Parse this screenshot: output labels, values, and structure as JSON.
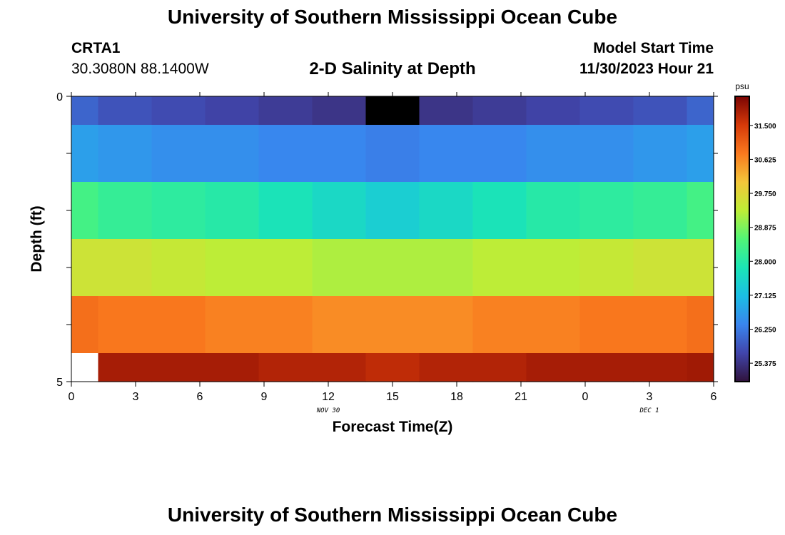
{
  "header": {
    "title": "University of Southern Mississippi Ocean Cube",
    "station": "CRTA1",
    "coords": "30.3080N  88.1400W",
    "plot_title": "2-D Salinity at Depth",
    "start_label": "Model Start Time",
    "start_time": "11/30/2023 Hour 21"
  },
  "footer": {
    "title": "University of Southern Mississippi Ocean Cube"
  },
  "chart_data": {
    "type": "heatmap",
    "title": "2-D Salinity at Depth",
    "xlabel": "Forecast Time(Z)",
    "ylabel": "Depth (ft)",
    "x_ticks": [
      "0",
      "3",
      "6",
      "9",
      "12",
      "15",
      "18",
      "21",
      "0",
      "3",
      "6"
    ],
    "x_range": [
      0,
      30
    ],
    "date_labels": [
      {
        "text": "NOV 30",
        "at_hour": 12
      },
      {
        "text": "DEC 1",
        "at_hour": 27
      }
    ],
    "y_ticks": [
      {
        "label": "0",
        "depth": 0
      },
      {
        "label": "",
        "depth": 1
      },
      {
        "label": "",
        "depth": 2
      },
      {
        "label": "",
        "depth": 3
      },
      {
        "label": "",
        "depth": 4
      },
      {
        "label": "5",
        "depth": 5
      }
    ],
    "y_range": [
      0,
      5
    ],
    "x_centers": [
      0,
      2.5,
      5,
      7.5,
      10,
      12.5,
      15,
      17.5,
      20,
      22.5,
      25,
      27.5,
      30
    ],
    "row_depths": [
      {
        "top": 0,
        "bottom": 0.5
      },
      {
        "top": 0.5,
        "bottom": 1.5
      },
      {
        "top": 1.5,
        "bottom": 2.5
      },
      {
        "top": 2.5,
        "bottom": 3.5
      },
      {
        "top": 3.5,
        "bottom": 4.5
      },
      {
        "top": 4.5,
        "bottom": 5
      }
    ],
    "values": [
      [
        26.0,
        25.8,
        25.7,
        25.6,
        25.5,
        25.4,
        25.2,
        25.4,
        25.5,
        25.6,
        25.7,
        25.8,
        26.0
      ],
      [
        26.7,
        26.6,
        26.5,
        26.5,
        26.4,
        26.4,
        26.3,
        26.4,
        26.4,
        26.5,
        26.5,
        26.6,
        26.7
      ],
      [
        28.4,
        28.2,
        28.1,
        28.0,
        27.8,
        27.6,
        27.4,
        27.6,
        27.8,
        28.0,
        28.1,
        28.2,
        28.4
      ],
      [
        29.5,
        29.5,
        29.4,
        29.3,
        29.3,
        29.2,
        29.2,
        29.2,
        29.3,
        29.3,
        29.4,
        29.5,
        29.5
      ],
      [
        30.9,
        30.8,
        30.8,
        30.7,
        30.7,
        30.6,
        30.6,
        30.6,
        30.7,
        30.7,
        30.8,
        30.8,
        30.9
      ],
      [
        null,
        31.9,
        31.9,
        31.9,
        31.8,
        31.8,
        31.7,
        31.8,
        31.8,
        31.9,
        31.9,
        31.9,
        31.95
      ]
    ],
    "colorbar": {
      "unit": "psu",
      "min": 24.9,
      "max": 32.25,
      "tick_values": [
        25.375,
        26.25,
        27.125,
        28.0,
        28.875,
        29.75,
        30.625,
        31.5
      ],
      "tick_labels": [
        "25.375",
        "26.250",
        "27.125",
        "28.000",
        "28.875",
        "29.750",
        "30.625",
        "31.500"
      ]
    }
  }
}
